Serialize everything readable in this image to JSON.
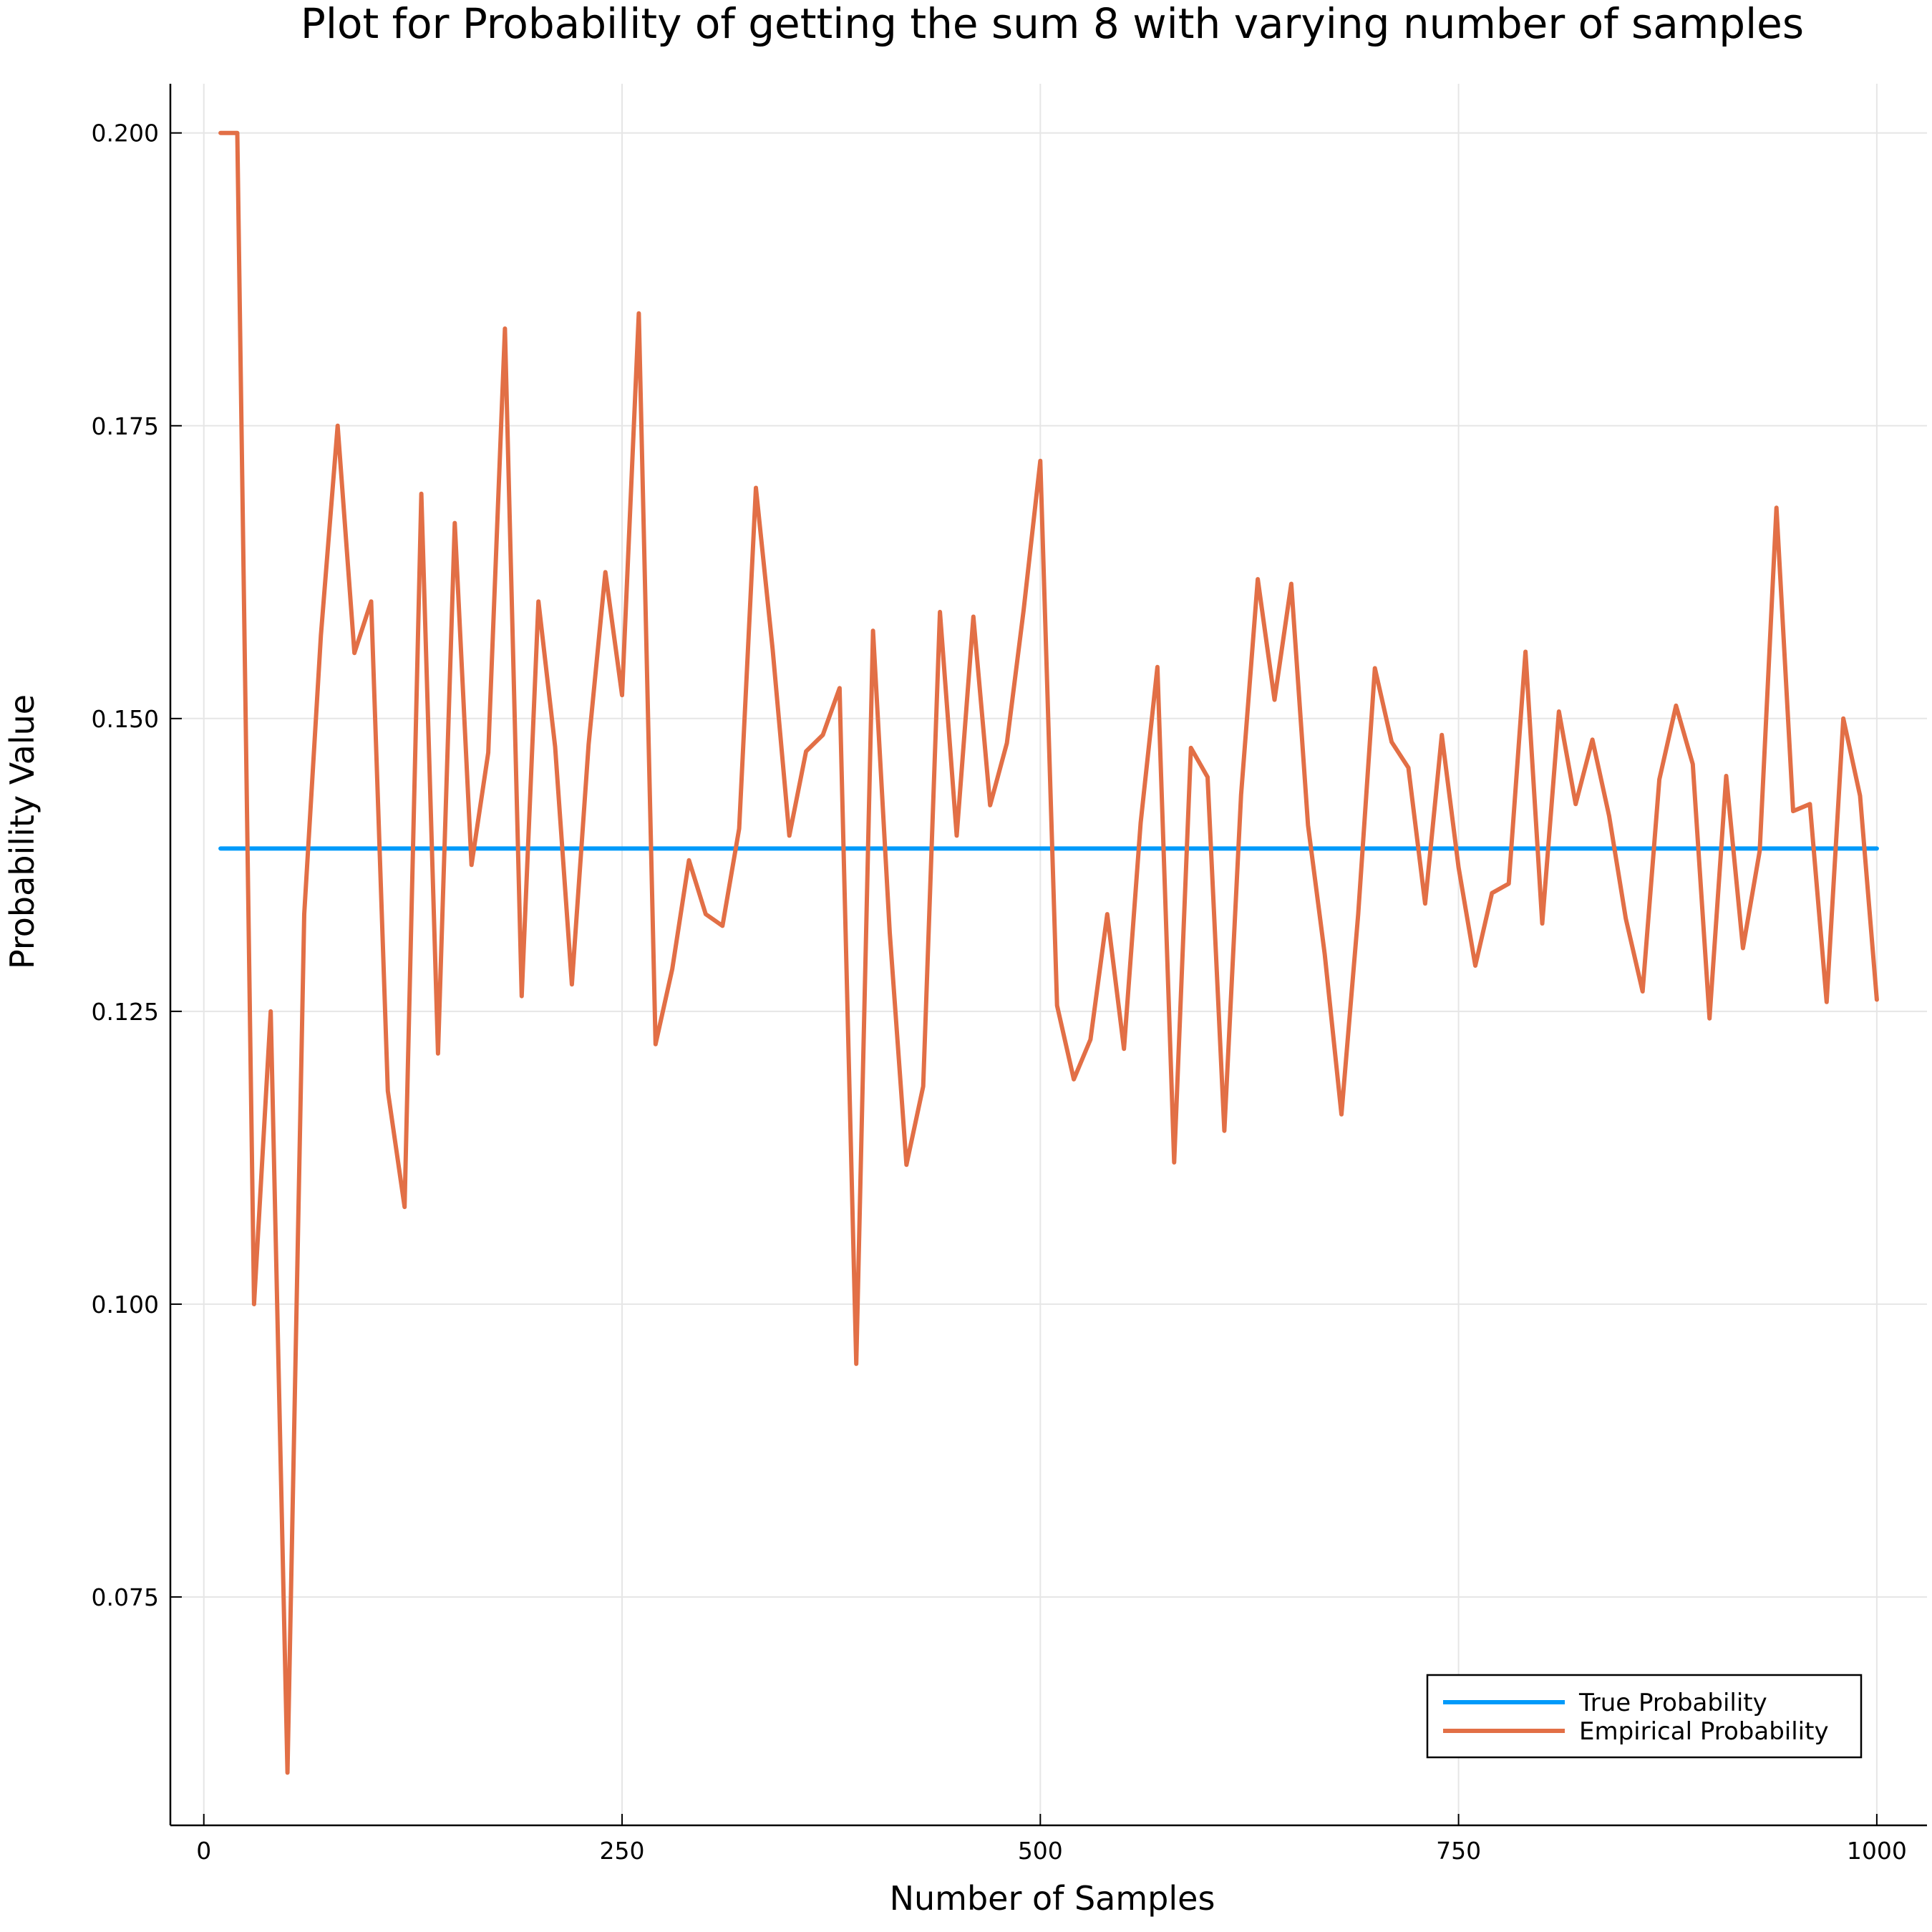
{
  "chart_data": {
    "type": "line",
    "title": "Plot for Probability of getting the sum 8 with varying number of samples",
    "xlabel": "Number of Samples",
    "ylabel": "Probability Value",
    "xlim": [
      -20,
      1030
    ],
    "ylim": [
      0.0555,
      0.2042
    ],
    "xticks": [
      0,
      250,
      500,
      750,
      1000
    ],
    "xtick_labels": [
      "0",
      "250",
      "500",
      "750",
      "1000"
    ],
    "yticks": [
      0.075,
      0.1,
      0.125,
      0.15,
      0.175,
      0.2
    ],
    "ytick_labels": [
      "0.075",
      "0.100",
      "0.125",
      "0.150",
      "0.175",
      "0.200"
    ],
    "grid": true,
    "legend_position": "bottom-right",
    "x": [
      10,
      20,
      30,
      40,
      50,
      60,
      70,
      80,
      90,
      100,
      110,
      120,
      130,
      140,
      150,
      160,
      170,
      180,
      190,
      200,
      210,
      220,
      230,
      240,
      250,
      260,
      270,
      280,
      290,
      300,
      310,
      320,
      330,
      340,
      350,
      360,
      370,
      380,
      390,
      400,
      410,
      420,
      430,
      440,
      450,
      460,
      470,
      480,
      490,
      500,
      510,
      520,
      530,
      540,
      550,
      560,
      570,
      580,
      590,
      600,
      610,
      620,
      630,
      640,
      650,
      660,
      670,
      680,
      690,
      700,
      710,
      720,
      730,
      740,
      750,
      760,
      770,
      780,
      790,
      800,
      810,
      820,
      830,
      840,
      850,
      860,
      870,
      880,
      890,
      900,
      910,
      920,
      930,
      940,
      950,
      960,
      970,
      980,
      990,
      1000
    ],
    "series": [
      {
        "name": "True Probability",
        "color": "#009AFA",
        "values": [
          0.1389,
          0.1389,
          0.1389,
          0.1389,
          0.1389,
          0.1389,
          0.1389,
          0.1389,
          0.1389,
          0.1389,
          0.1389,
          0.1389,
          0.1389,
          0.1389,
          0.1389,
          0.1389,
          0.1389,
          0.1389,
          0.1389,
          0.1389,
          0.1389,
          0.1389,
          0.1389,
          0.1389,
          0.1389,
          0.1389,
          0.1389,
          0.1389,
          0.1389,
          0.1389,
          0.1389,
          0.1389,
          0.1389,
          0.1389,
          0.1389,
          0.1389,
          0.1389,
          0.1389,
          0.1389,
          0.1389,
          0.1389,
          0.1389,
          0.1389,
          0.1389,
          0.1389,
          0.1389,
          0.1389,
          0.1389,
          0.1389,
          0.1389,
          0.1389,
          0.1389,
          0.1389,
          0.1389,
          0.1389,
          0.1389,
          0.1389,
          0.1389,
          0.1389,
          0.1389,
          0.1389,
          0.1389,
          0.1389,
          0.1389,
          0.1389,
          0.1389,
          0.1389,
          0.1389,
          0.1389,
          0.1389,
          0.1389,
          0.1389,
          0.1389,
          0.1389,
          0.1389,
          0.1389,
          0.1389,
          0.1389,
          0.1389,
          0.1389,
          0.1389,
          0.1389,
          0.1389,
          0.1389,
          0.1389,
          0.1389,
          0.1389,
          0.1389,
          0.1389,
          0.1389,
          0.1389,
          0.1389,
          0.1389,
          0.1389,
          0.1389,
          0.1389,
          0.1389,
          0.1389,
          0.1389,
          0.1389
        ]
      },
      {
        "name": "Empirical Probability",
        "color": "#E26F46",
        "values": [
          0.2,
          0.2,
          0.1,
          0.125,
          0.06,
          0.1333,
          0.1571,
          0.175,
          0.1556,
          0.16,
          0.1182,
          0.1083,
          0.1692,
          0.1214,
          0.1667,
          0.1375,
          0.1471,
          0.1833,
          0.1263,
          0.16,
          0.1476,
          0.1273,
          0.1478,
          0.1625,
          0.152,
          0.1846,
          0.1222,
          0.1286,
          0.1379,
          0.1333,
          0.1323,
          0.1406,
          0.1697,
          0.1559,
          0.14,
          0.1472,
          0.1486,
          0.1526,
          0.0949,
          0.1575,
          0.1317,
          0.1119,
          0.1186,
          0.1591,
          0.14,
          0.1587,
          0.1426,
          0.1479,
          0.1592,
          0.172,
          0.1255,
          0.1192,
          0.1226,
          0.1333,
          0.1218,
          0.1411,
          0.1544,
          0.1121,
          0.1475,
          0.145,
          0.1148,
          0.1435,
          0.1619,
          0.1516,
          0.1615,
          0.1409,
          0.1299,
          0.1162,
          0.1333,
          0.1543,
          0.148,
          0.1458,
          0.1342,
          0.1486,
          0.1373,
          0.1289,
          0.1351,
          0.1359,
          0.1557,
          0.1325,
          0.1506,
          0.1427,
          0.1482,
          0.1417,
          0.1329,
          0.1267,
          0.1448,
          0.1511,
          0.1461,
          0.1244,
          0.1451,
          0.1304,
          0.1387,
          0.168,
          0.1421,
          0.1427,
          0.1258,
          0.15,
          0.1434,
          0.126
        ]
      }
    ]
  }
}
